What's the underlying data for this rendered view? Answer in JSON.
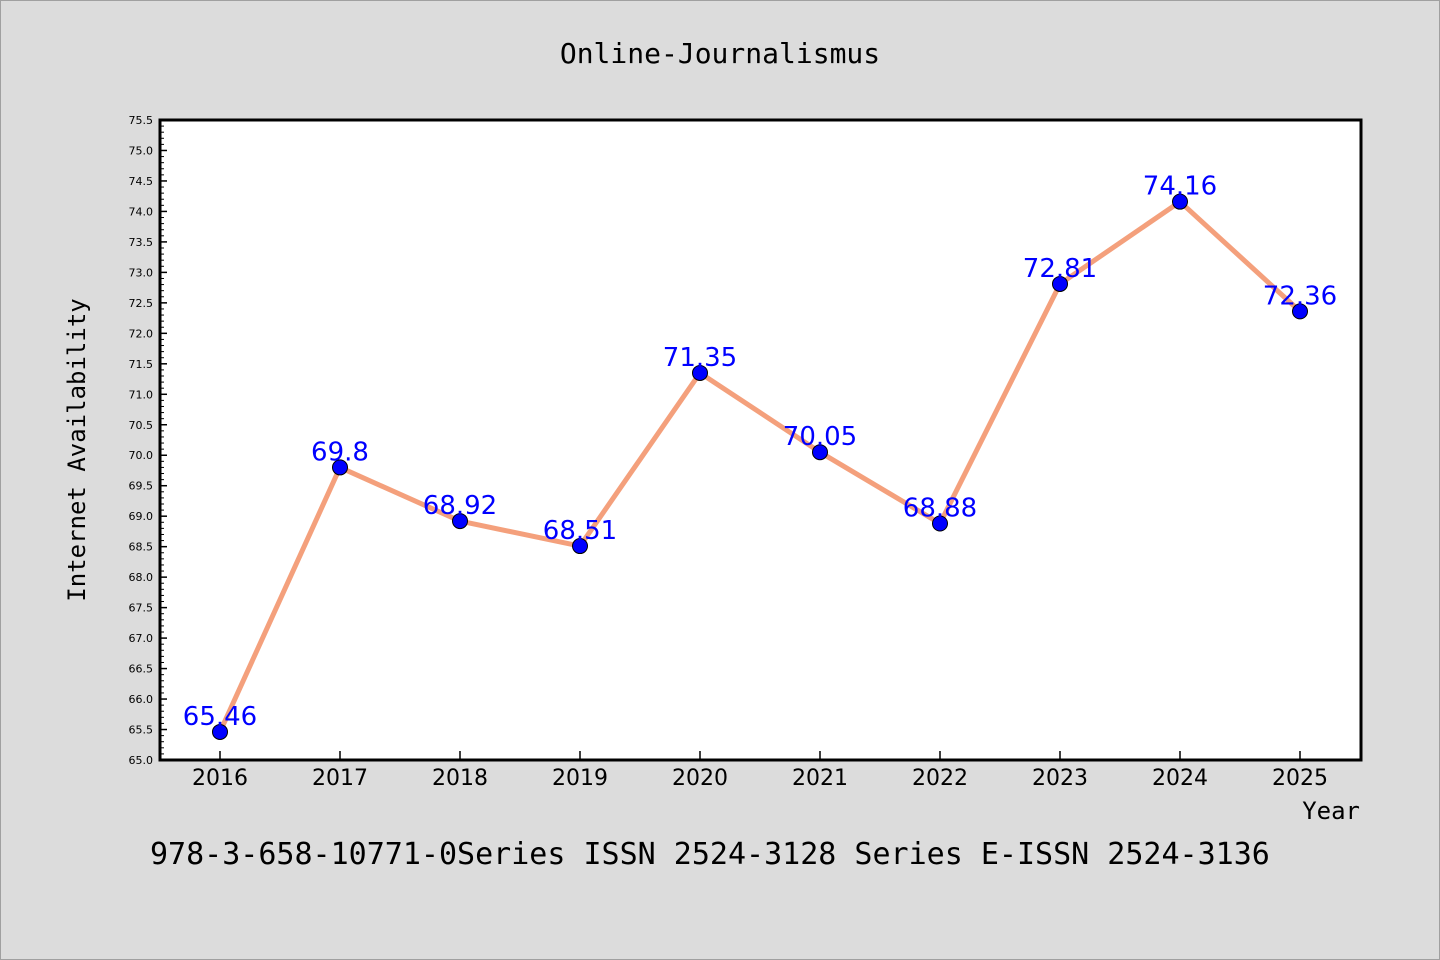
{
  "chart_data": {
    "type": "line",
    "title": "Online-Journalismus",
    "xlabel": "Year",
    "ylabel": "Internet Availability",
    "footer": "978-3-658-10771-0Series ISSN 2524-3128 Series E-ISSN 2524-3136",
    "categories": [
      "2016",
      "2017",
      "2018",
      "2019",
      "2020",
      "2021",
      "2022",
      "2023",
      "2024",
      "2025"
    ],
    "series": [
      {
        "values": [
          65.46,
          69.8,
          68.92,
          68.51,
          71.35,
          70.05,
          68.88,
          72.81,
          74.16,
          72.36
        ],
        "labels": [
          "65.46",
          "69.8",
          "68.92",
          "68.51",
          "71.35",
          "70.05",
          "68.88",
          "72.81",
          "74.16",
          "72.36"
        ]
      }
    ],
    "ylim": [
      65.0,
      75.5
    ],
    "ytick_step": 0.5,
    "grid": false,
    "colors": {
      "line": "#f4a07c",
      "marker": "#0000ff",
      "label": "#0000ff",
      "background": "#dcdcdc",
      "plot_background": "#ffffff"
    }
  }
}
